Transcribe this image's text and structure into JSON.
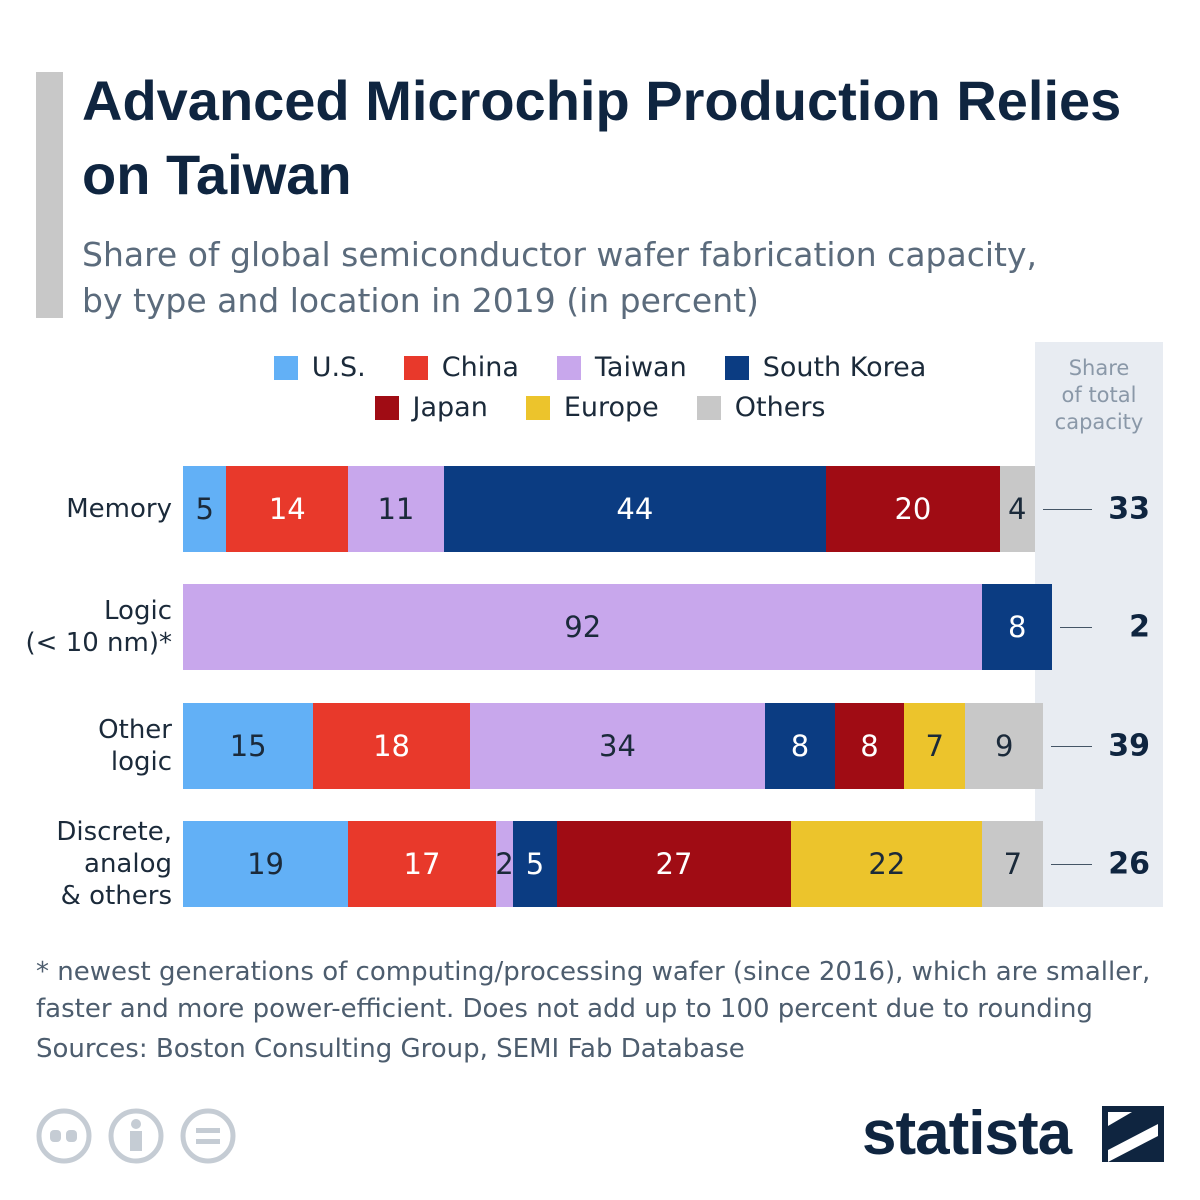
{
  "chart_data": {
    "type": "stacked-bar-horizontal",
    "title": "Advanced Microchip Production Relies on Taiwan",
    "subtitle": "Share of global semiconductor wafer fabrication capacity,\nby type and location in 2019 (in percent)",
    "categories": [
      "Memory",
      "Logic\n(< 10 nm)*",
      "Other\nlogic",
      "Discrete,\nanalog\n& others"
    ],
    "xlim": [
      0,
      100
    ],
    "series": [
      {
        "name": "U.S.",
        "color": "#62b0f6",
        "values": [
          5,
          null,
          15,
          19
        ]
      },
      {
        "name": "China",
        "color": "#e8392b",
        "values": [
          14,
          null,
          18,
          17
        ]
      },
      {
        "name": "Taiwan",
        "color": "#c8a7ec",
        "values": [
          11,
          92,
          34,
          2
        ]
      },
      {
        "name": "South Korea",
        "color": "#0b3c82",
        "values": [
          44,
          8,
          8,
          5
        ]
      },
      {
        "name": "Japan",
        "color": "#a00c14",
        "values": [
          20,
          null,
          8,
          27
        ]
      },
      {
        "name": "Europe",
        "color": "#ecc42c",
        "values": [
          null,
          null,
          7,
          22
        ]
      },
      {
        "name": "Others",
        "color": "#c8c8c8",
        "values": [
          4,
          null,
          9,
          7
        ]
      }
    ],
    "totals": {
      "title": "Share\nof total\ncapacity",
      "values": [
        33,
        2,
        39,
        26
      ]
    },
    "footnote": "* newest generations of computing/processing wafer (since 2016), which are smaller,\nfaster and more power-efficient. Does not add up to 100 percent due to rounding",
    "source": "Sources: Boston Consulting Group, SEMI Fab Database",
    "brand": "statista"
  }
}
